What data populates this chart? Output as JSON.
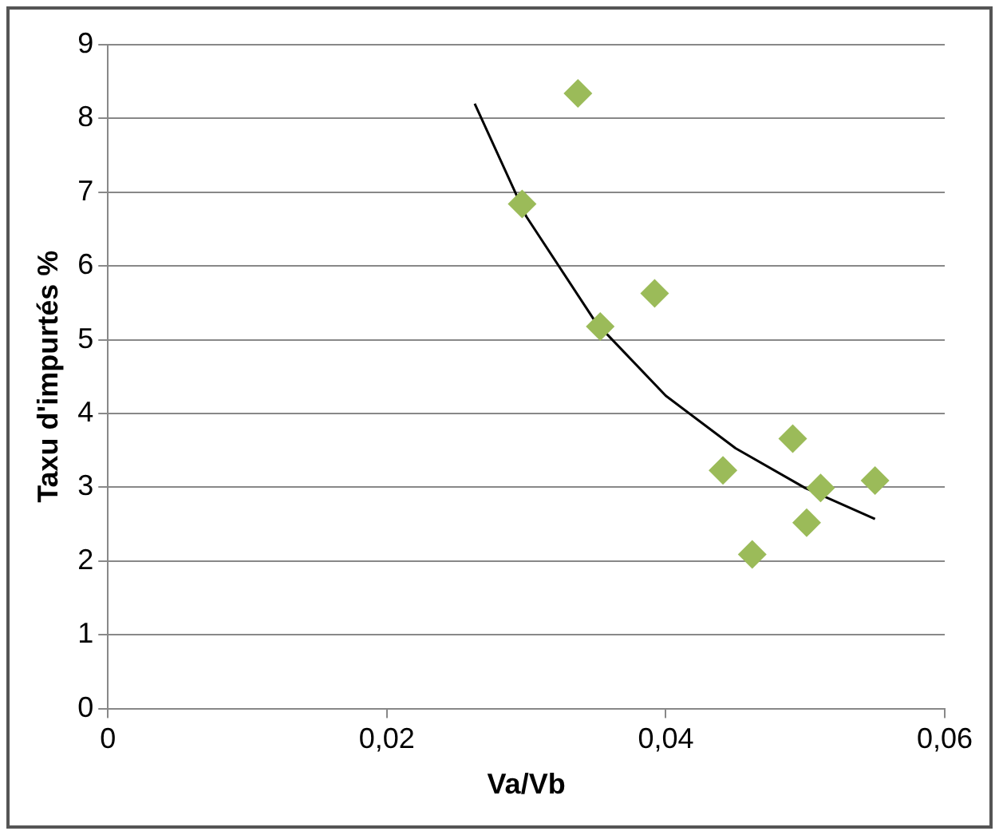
{
  "chart_data": {
    "type": "scatter",
    "xlabel": "Va/Vb",
    "ylabel": "Taxu d'impurtés %",
    "xlim": [
      0,
      0.06
    ],
    "xticks": [
      0,
      {
        "value": 0.02,
        "label": "0,02"
      },
      {
        "value": 0.04,
        "label": "0,04"
      },
      {
        "value": 0.06,
        "label": "0,06"
      }
    ],
    "ylim": [
      0,
      9
    ],
    "yticks": [
      0,
      1,
      2,
      3,
      4,
      5,
      6,
      7,
      8,
      9
    ],
    "grid": "y",
    "legend": false,
    "series": [
      {
        "type": "scatter",
        "color": "#9bbb59",
        "marker": "diamond",
        "x": [
          0.0297,
          0.0337,
          0.0353,
          0.0392,
          0.0441,
          0.0462,
          0.0491,
          0.0501,
          0.0511,
          0.055
        ],
        "values": [
          6.84,
          8.34,
          5.18,
          5.63,
          3.23,
          2.09,
          3.66,
          2.52,
          2.99,
          3.09
        ]
      },
      {
        "type": "line",
        "color": "#000000",
        "marker": "none",
        "x": [
          0.0263,
          0.03,
          0.035,
          0.04,
          0.045,
          0.05,
          0.055
        ],
        "values": [
          8.2,
          6.67,
          5.23,
          4.24,
          3.53,
          2.99,
          2.57
        ]
      }
    ]
  }
}
